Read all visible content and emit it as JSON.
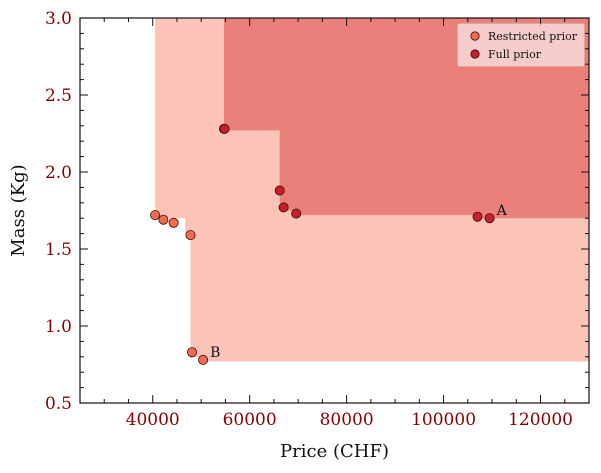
{
  "chart_data": {
    "type": "scatter",
    "xlabel": "Price (CHF)",
    "ylabel": "Mass (Kg)",
    "xlim": [
      25000,
      130000
    ],
    "ylim": [
      0.5,
      3.0
    ],
    "xticks": [
      40000,
      60000,
      80000,
      100000,
      120000
    ],
    "xtick_labels": [
      "40000",
      "60000",
      "80000",
      "100000",
      "120000"
    ],
    "yticks": [
      0.5,
      1.0,
      1.5,
      2.0,
      2.5,
      3.0
    ],
    "ytick_labels": [
      "0.5",
      "1.0",
      "1.5",
      "2.0",
      "2.5",
      "3.0"
    ],
    "tick_color": "#8b0000",
    "grid": false,
    "legend_position": "top-right",
    "regions": [
      {
        "name": "Restricted prior",
        "color": "#fcc4b6",
        "boundary": [
          [
            40500,
            3.0
          ],
          [
            40500,
            1.7
          ],
          [
            46700,
            1.7
          ],
          [
            46700,
            1.6
          ],
          [
            47800,
            1.6
          ],
          [
            47800,
            0.8
          ],
          [
            50400,
            0.8
          ],
          [
            50400,
            0.77
          ],
          [
            130000,
            0.77
          ],
          [
            130000,
            3.0
          ]
        ]
      },
      {
        "name": "Full prior",
        "color": "#e9807a",
        "boundary": [
          [
            54700,
            3.0
          ],
          [
            54700,
            2.27
          ],
          [
            66200,
            2.27
          ],
          [
            66200,
            1.8
          ],
          [
            67000,
            1.8
          ],
          [
            67000,
            1.75
          ],
          [
            69500,
            1.75
          ],
          [
            69500,
            1.72
          ],
          [
            107000,
            1.72
          ],
          [
            107000,
            1.7
          ],
          [
            130000,
            1.7
          ],
          [
            130000,
            3.0
          ]
        ]
      }
    ],
    "series": [
      {
        "name": "Restricted prior",
        "color": "#f26d4f",
        "points": [
          [
            40500,
            1.72
          ],
          [
            42200,
            1.69
          ],
          [
            44300,
            1.67
          ],
          [
            47800,
            1.59
          ],
          [
            48100,
            0.83
          ],
          [
            50400,
            0.78
          ],
          [
            54700,
            2.28
          ]
        ]
      },
      {
        "name": "Full prior",
        "color": "#c8202a",
        "points": [
          [
            54800,
            2.28
          ],
          [
            66200,
            1.88
          ],
          [
            67000,
            1.77
          ],
          [
            69600,
            1.73
          ],
          [
            107000,
            1.71
          ],
          [
            109500,
            1.7
          ]
        ]
      }
    ],
    "annotations": [
      {
        "text": "A",
        "x": 109500,
        "y": 1.7
      },
      {
        "text": "B",
        "x": 50400,
        "y": 0.78
      }
    ]
  }
}
